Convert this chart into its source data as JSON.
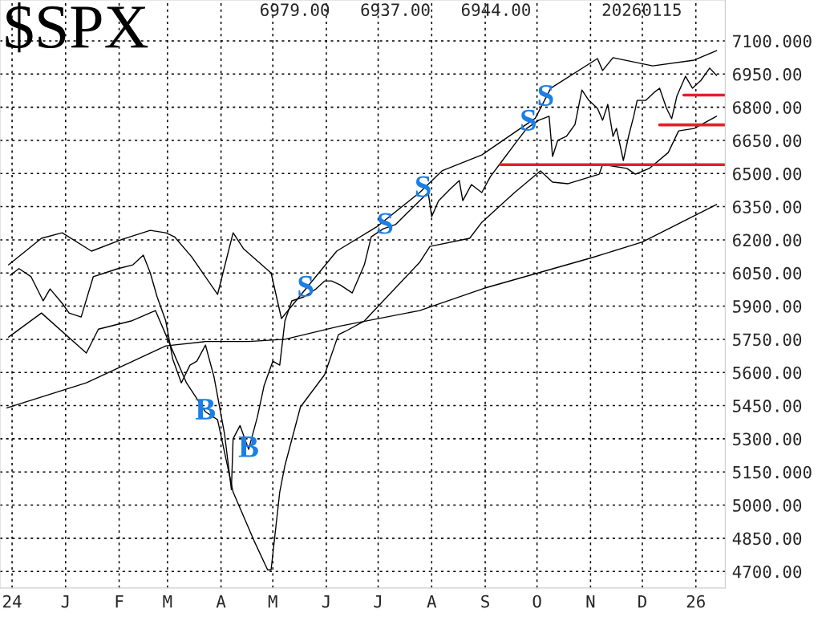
{
  "chart_data": {
    "type": "line",
    "title": "$SPX",
    "subtitle": "6979.00   6937.00   6944.00       20260115",
    "xlim": [
      "2024-11-24",
      "2026-01-18"
    ],
    "xticks": [
      {
        "value": "2024-12-01",
        "label": "24"
      },
      {
        "value": "2025-01-01",
        "label": "J"
      },
      {
        "value": "2025-02-01",
        "label": "F"
      },
      {
        "value": "2025-03-01",
        "label": "M"
      },
      {
        "value": "2025-04-01",
        "label": "A"
      },
      {
        "value": "2025-05-01",
        "label": "M"
      },
      {
        "value": "2025-06-01",
        "label": "J"
      },
      {
        "value": "2025-07-01",
        "label": "J"
      },
      {
        "value": "2025-08-01",
        "label": "A"
      },
      {
        "value": "2025-09-01",
        "label": "S"
      },
      {
        "value": "2025-10-01",
        "label": "O"
      },
      {
        "value": "2025-11-01",
        "label": "N"
      },
      {
        "value": "2025-12-01",
        "label": "D"
      },
      {
        "value": "2026-01-01",
        "label": "26"
      }
    ],
    "ylim": [
      4625,
      7285
    ],
    "yticks": [
      {
        "value": 7100,
        "label": "7100.000"
      },
      {
        "value": 6950,
        "label": "6950.00"
      },
      {
        "value": 6800,
        "label": "6800.00"
      },
      {
        "value": 6650,
        "label": "6650.00"
      },
      {
        "value": 6500,
        "label": "6500.00"
      },
      {
        "value": 6350,
        "label": "6350.00"
      },
      {
        "value": 6200,
        "label": "6200.00"
      },
      {
        "value": 6050,
        "label": "6050.00"
      },
      {
        "value": 5900,
        "label": "5900.00"
      },
      {
        "value": 5750,
        "label": "5750.00"
      },
      {
        "value": 5600,
        "label": "5600.00"
      },
      {
        "value": 5450,
        "label": "5450.00"
      },
      {
        "value": 5300,
        "label": "5300.00"
      },
      {
        "value": 5150,
        "label": "5150.000"
      },
      {
        "value": 5000,
        "label": "5000.00"
      },
      {
        "value": 4850,
        "label": "4850.00"
      },
      {
        "value": 4700,
        "label": "4700.00"
      }
    ],
    "grid": true,
    "marker": "none",
    "line_style": "solid",
    "series": [
      {
        "color": "#000000",
        "x": [
          "2024-11-30",
          "2024-12-05",
          "2024-12-12",
          "2024-12-19",
          "2024-12-23",
          "2024-12-30",
          "2025-01-03",
          "2025-01-10",
          "2025-01-17",
          "2025-01-24",
          "2025-01-31",
          "2025-02-09",
          "2025-02-15",
          "2025-02-19",
          "2025-02-23",
          "2025-02-28",
          "2025-03-04",
          "2025-03-09",
          "2025-03-14",
          "2025-03-18",
          "2025-03-23",
          "2025-03-28",
          "2025-04-03",
          "2025-04-07",
          "2025-04-08",
          "2025-04-12",
          "2025-04-17",
          "2025-04-22",
          "2025-04-26",
          "2025-05-01",
          "2025-05-05",
          "2025-05-08",
          "2025-05-12",
          "2025-05-19",
          "2025-05-26",
          "2025-05-31",
          "2025-06-04",
          "2025-06-09",
          "2025-06-16",
          "2025-06-23",
          "2025-06-27",
          "2025-07-04",
          "2025-07-11",
          "2025-07-18",
          "2025-07-25",
          "2025-07-30",
          "2025-08-01",
          "2025-08-05",
          "2025-08-12",
          "2025-08-17",
          "2025-08-19",
          "2025-08-24",
          "2025-08-30",
          "2025-09-04",
          "2025-09-11",
          "2025-09-18",
          "2025-09-25",
          "2025-10-02",
          "2025-10-08",
          "2025-10-10",
          "2025-10-13",
          "2025-10-18",
          "2025-10-23",
          "2025-10-27",
          "2025-10-31",
          "2025-11-05",
          "2025-11-08",
          "2025-11-11",
          "2025-11-14",
          "2025-11-16",
          "2025-11-20",
          "2025-11-23",
          "2025-11-26",
          "2025-11-28",
          "2025-12-03",
          "2025-12-08",
          "2025-12-11",
          "2025-12-15",
          "2025-12-18",
          "2025-12-21",
          "2025-12-26",
          "2025-12-30",
          "2026-01-04",
          "2026-01-09",
          "2026-01-13"
        ],
        "values": [
          6040,
          6070,
          6033,
          5924,
          5978,
          5913,
          5869,
          5851,
          6033,
          6051,
          6069,
          6087,
          6131,
          6051,
          5942,
          5833,
          5662,
          5553,
          5633,
          5651,
          5724,
          5578,
          5324,
          5070,
          5300,
          5360,
          5252,
          5397,
          5542,
          5651,
          5633,
          5833,
          5924,
          5942,
          5978,
          6014,
          6014,
          5996,
          5960,
          6087,
          6214,
          6250,
          6269,
          6323,
          6377,
          6414,
          6305,
          6377,
          6432,
          6468,
          6377,
          6450,
          6414,
          6486,
          6559,
          6632,
          6704,
          6741,
          6759,
          6577,
          6650,
          6668,
          6722,
          6878,
          6831,
          6795,
          6741,
          6813,
          6668,
          6704,
          6559,
          6668,
          6759,
          6831,
          6831,
          6868,
          6886,
          6795,
          6748,
          6850,
          6940,
          6886,
          6922,
          6977,
          6944
        ]
      },
      {
        "color": "#000000",
        "x": [
          "2024-11-29",
          "2024-12-18",
          "2024-12-30",
          "2025-01-16",
          "2025-02-03",
          "2025-02-19",
          "2025-02-28",
          "2025-03-05",
          "2025-03-15",
          "2025-03-30",
          "2025-04-08",
          "2025-04-14",
          "2025-04-30",
          "2025-05-06",
          "2025-06-07",
          "2025-06-30",
          "2025-07-25",
          "2025-08-07",
          "2025-08-30",
          "2025-09-30",
          "2025-10-09",
          "2025-11-05",
          "2025-11-08",
          "2025-11-14",
          "2025-12-07",
          "2025-12-31",
          "2026-01-13"
        ],
        "values": [
          6087,
          6207,
          6232,
          6149,
          6203,
          6243,
          6232,
          6214,
          6123,
          5953,
          6232,
          6160,
          6050,
          5844,
          6149,
          6258,
          6414,
          6512,
          6584,
          6750,
          6886,
          7020,
          6966,
          7024,
          6987,
          7013,
          7056
        ]
      },
      {
        "color": "#000000",
        "x": [
          "2024-11-29",
          "2024-12-18",
          "2025-01-13",
          "2025-01-20",
          "2025-02-08",
          "2025-02-22",
          "2025-02-28",
          "2025-03-12",
          "2025-03-23",
          "2025-03-30",
          "2025-04-08",
          "2025-04-20",
          "2025-04-28",
          "2025-04-30",
          "2025-05-05",
          "2025-05-08",
          "2025-05-17",
          "2025-05-31",
          "2025-06-08",
          "2025-06-12",
          "2025-06-23",
          "2025-07-25",
          "2025-07-31",
          "2025-08-23",
          "2025-08-30",
          "2025-09-18",
          "2025-10-03",
          "2025-10-10",
          "2025-10-19",
          "2025-11-06",
          "2025-11-08",
          "2025-11-22",
          "2025-11-27",
          "2025-12-05",
          "2025-12-16",
          "2025-12-22",
          "2025-12-31",
          "2026-01-13"
        ],
        "values": [
          5760,
          5869,
          5688,
          5796,
          5833,
          5880,
          5771,
          5553,
          5422,
          5386,
          5059,
          4841,
          4707,
          4707,
          5059,
          5179,
          5444,
          5590,
          5771,
          5786,
          5833,
          6098,
          6170,
          6207,
          6279,
          6414,
          6512,
          6461,
          6454,
          6497,
          6541,
          6523,
          6497,
          6523,
          6595,
          6693,
          6704,
          6759
        ]
      },
      {
        "color": "#000000",
        "x": [
          "2024-11-28",
          "2025-01-13",
          "2025-02-28",
          "2025-03-23",
          "2025-04-17",
          "2025-05-08",
          "2025-06-09",
          "2025-07-25",
          "2025-08-31",
          "2025-11-02",
          "2025-12-01",
          "2026-01-13"
        ],
        "values": [
          5440,
          5553,
          5720,
          5740,
          5740,
          5750,
          5810,
          5880,
          5980,
          6120,
          6190,
          6360
        ]
      },
      {
        "color": "#e0212b",
        "x": [
          "2025-09-10",
          "2026-01-18"
        ],
        "values": [
          6540,
          6540
        ]
      },
      {
        "color": "#e0212b",
        "x": [
          "2025-12-11",
          "2026-01-18"
        ],
        "values": [
          6720,
          6720
        ]
      },
      {
        "color": "#e0212b",
        "x": [
          "2025-12-25",
          "2026-01-18"
        ],
        "values": [
          6855,
          6855
        ]
      }
    ],
    "annotations": [
      {
        "text": "B",
        "x": "2025-03-23",
        "y": 5422
      },
      {
        "text": "B",
        "x": "2025-04-17",
        "y": 5252
      },
      {
        "text": "S",
        "x": "2025-05-20",
        "y": 5978
      },
      {
        "text": "S",
        "x": "2025-07-05",
        "y": 6262
      },
      {
        "text": "S",
        "x": "2025-07-27",
        "y": 6429
      },
      {
        "text": "S",
        "x": "2025-09-26",
        "y": 6729
      },
      {
        "text": "S",
        "x": "2025-10-06",
        "y": 6841
      }
    ]
  }
}
